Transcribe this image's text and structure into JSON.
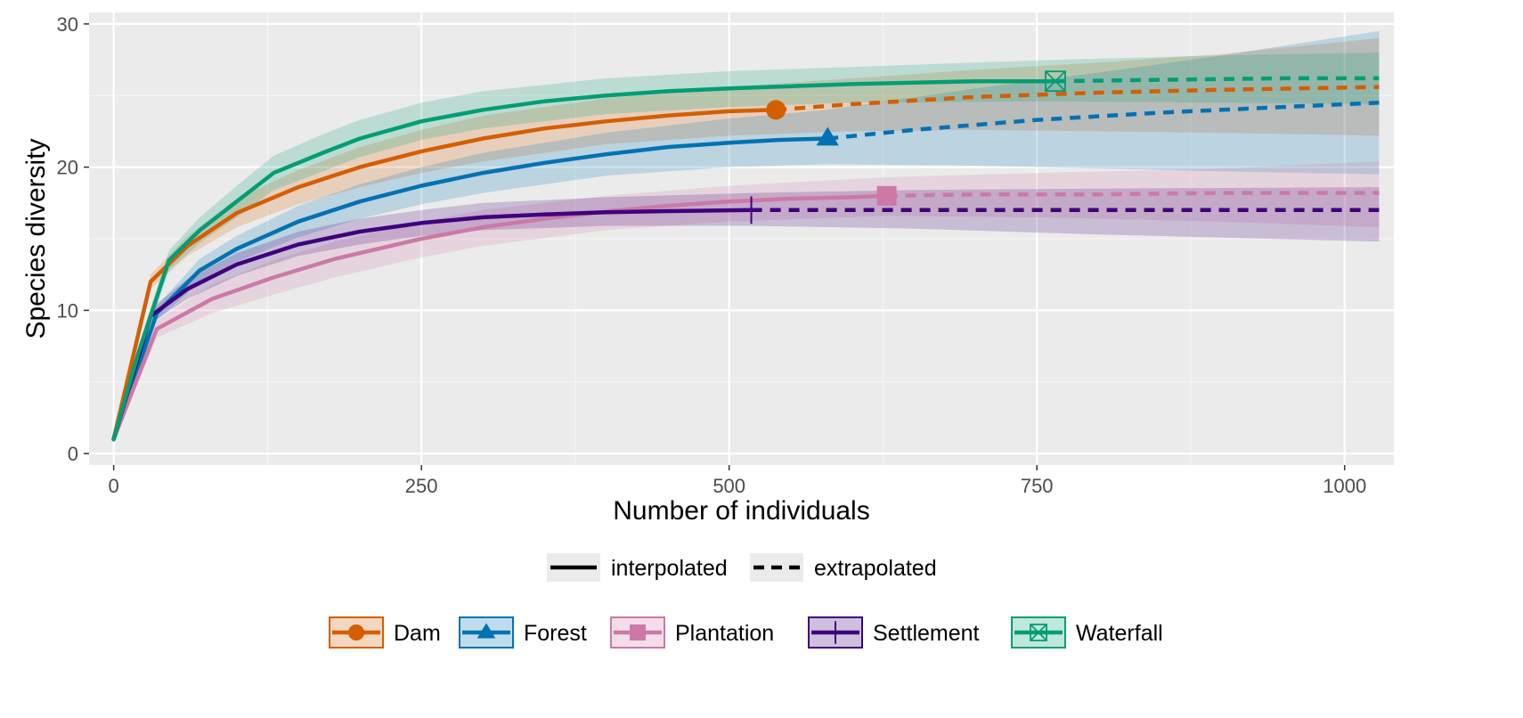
{
  "chart_data": {
    "type": "line",
    "title": "",
    "xlabel": "Number of individuals",
    "ylabel": "Species diversity",
    "xlim": [
      -20,
      1040
    ],
    "ylim": [
      -0.8,
      30.8
    ],
    "x_ticks": [
      0,
      250,
      500,
      750,
      1000
    ],
    "y_ticks": [
      0,
      10,
      20,
      30
    ],
    "grid": true,
    "legend_position": "bottom",
    "method_legend": [
      {
        "label": "interpolated",
        "style": "solid"
      },
      {
        "label": "extrapolated",
        "style": "dashed"
      }
    ],
    "series": [
      {
        "name": "Dam",
        "color": "#d55e00",
        "marker": "circle",
        "interpolated": [
          [
            0,
            1
          ],
          [
            30,
            12
          ],
          [
            60,
            14.5
          ],
          [
            100,
            16.8
          ],
          [
            150,
            18.6
          ],
          [
            200,
            20
          ],
          [
            250,
            21.1
          ],
          [
            300,
            22
          ],
          [
            350,
            22.7
          ],
          [
            400,
            23.2
          ],
          [
            450,
            23.6
          ],
          [
            500,
            23.9
          ],
          [
            538,
            24
          ]
        ],
        "observed": [
          538,
          24
        ],
        "extrapolated": [
          [
            538,
            24
          ],
          [
            600,
            24.4
          ],
          [
            700,
            24.9
          ],
          [
            800,
            25.2
          ],
          [
            900,
            25.4
          ],
          [
            1028,
            25.6
          ]
        ],
        "ci_upper": [
          [
            0,
            1
          ],
          [
            30,
            12.5
          ],
          [
            60,
            15.2
          ],
          [
            100,
            17.8
          ],
          [
            150,
            19.8
          ],
          [
            200,
            21.4
          ],
          [
            250,
            22.6
          ],
          [
            300,
            23.6
          ],
          [
            400,
            24.8
          ],
          [
            500,
            25.6
          ],
          [
            600,
            26.2
          ],
          [
            700,
            26.8
          ],
          [
            800,
            27.3
          ],
          [
            900,
            27.9
          ],
          [
            1028,
            29
          ]
        ],
        "ci_lower": [
          [
            0,
            1
          ],
          [
            30,
            11.5
          ],
          [
            60,
            13.8
          ],
          [
            100,
            15.8
          ],
          [
            150,
            17.4
          ],
          [
            200,
            18.6
          ],
          [
            250,
            19.6
          ],
          [
            300,
            20.4
          ],
          [
            400,
            21.6
          ],
          [
            500,
            22.2
          ],
          [
            600,
            22.5
          ],
          [
            700,
            22.6
          ],
          [
            800,
            22.5
          ],
          [
            900,
            22.4
          ],
          [
            1028,
            22.2
          ]
        ]
      },
      {
        "name": "Forest",
        "color": "#0072b2",
        "marker": "triangle",
        "interpolated": [
          [
            0,
            1
          ],
          [
            35,
            9.8
          ],
          [
            70,
            12.8
          ],
          [
            100,
            14.3
          ],
          [
            150,
            16.2
          ],
          [
            200,
            17.6
          ],
          [
            250,
            18.7
          ],
          [
            300,
            19.6
          ],
          [
            350,
            20.3
          ],
          [
            400,
            20.9
          ],
          [
            450,
            21.4
          ],
          [
            500,
            21.7
          ],
          [
            540,
            21.9
          ],
          [
            580,
            22
          ]
        ],
        "observed": [
          580,
          22
        ],
        "extrapolated": [
          [
            580,
            22
          ],
          [
            650,
            22.6
          ],
          [
            750,
            23.3
          ],
          [
            850,
            23.8
          ],
          [
            950,
            24.2
          ],
          [
            1028,
            24.5
          ]
        ],
        "ci_upper": [
          [
            0,
            1
          ],
          [
            35,
            10.3
          ],
          [
            70,
            13.6
          ],
          [
            100,
            15.2
          ],
          [
            150,
            17.3
          ],
          [
            200,
            18.8
          ],
          [
            250,
            20
          ],
          [
            300,
            21
          ],
          [
            400,
            22.4
          ],
          [
            500,
            23.4
          ],
          [
            580,
            24
          ],
          [
            700,
            25.5
          ],
          [
            800,
            26.6
          ],
          [
            900,
            27.8
          ],
          [
            1028,
            29.5
          ]
        ],
        "ci_lower": [
          [
            0,
            1
          ],
          [
            35,
            9.3
          ],
          [
            70,
            12
          ],
          [
            100,
            13.4
          ],
          [
            150,
            15.1
          ],
          [
            200,
            16.4
          ],
          [
            250,
            17.4
          ],
          [
            300,
            18.2
          ],
          [
            400,
            19.4
          ],
          [
            500,
            20
          ],
          [
            580,
            20.2
          ],
          [
            700,
            20.1
          ],
          [
            800,
            19.9
          ],
          [
            900,
            19.7
          ],
          [
            1028,
            19.5
          ]
        ]
      },
      {
        "name": "Plantation",
        "color": "#cc79a7",
        "marker": "square",
        "interpolated": [
          [
            0,
            1
          ],
          [
            35,
            8.7
          ],
          [
            80,
            10.8
          ],
          [
            130,
            12.3
          ],
          [
            180,
            13.6
          ],
          [
            250,
            15
          ],
          [
            300,
            15.8
          ],
          [
            350,
            16.4
          ],
          [
            400,
            16.9
          ],
          [
            450,
            17.3
          ],
          [
            500,
            17.6
          ],
          [
            550,
            17.8
          ],
          [
            600,
            17.9
          ],
          [
            628,
            18
          ]
        ],
        "observed": [
          628,
          18
        ],
        "extrapolated": [
          [
            628,
            18
          ],
          [
            700,
            18.1
          ],
          [
            800,
            18.1
          ],
          [
            900,
            18.2
          ],
          [
            1028,
            18.2
          ]
        ],
        "ci_upper": [
          [
            0,
            1
          ],
          [
            35,
            9.3
          ],
          [
            80,
            11.8
          ],
          [
            130,
            13.5
          ],
          [
            180,
            14.8
          ],
          [
            250,
            16.2
          ],
          [
            300,
            17
          ],
          [
            400,
            18
          ],
          [
            500,
            18.7
          ],
          [
            628,
            19.3
          ],
          [
            750,
            19.6
          ],
          [
            900,
            19.9
          ],
          [
            1028,
            20.4
          ]
        ],
        "ci_lower": [
          [
            0,
            1
          ],
          [
            35,
            8.1
          ],
          [
            80,
            9.8
          ],
          [
            130,
            11.1
          ],
          [
            180,
            12.3
          ],
          [
            250,
            13.7
          ],
          [
            300,
            14.5
          ],
          [
            400,
            15.6
          ],
          [
            500,
            16.2
          ],
          [
            628,
            16.6
          ],
          [
            750,
            16.5
          ],
          [
            900,
            16.2
          ],
          [
            1028,
            15.8
          ]
        ]
      },
      {
        "name": "Settlement",
        "color": "#3f007d",
        "marker": "vline",
        "interpolated": [
          [
            0,
            1
          ],
          [
            30,
            9.6
          ],
          [
            60,
            11.5
          ],
          [
            100,
            13.2
          ],
          [
            150,
            14.6
          ],
          [
            200,
            15.5
          ],
          [
            250,
            16.1
          ],
          [
            300,
            16.5
          ],
          [
            350,
            16.7
          ],
          [
            400,
            16.85
          ],
          [
            450,
            16.93
          ],
          [
            518,
            17
          ]
        ],
        "observed": [
          518,
          17
        ],
        "extrapolated": [
          [
            518,
            17
          ],
          [
            600,
            17
          ],
          [
            700,
            17
          ],
          [
            800,
            17
          ],
          [
            900,
            17
          ],
          [
            1028,
            17
          ]
        ],
        "ci_upper": [
          [
            0,
            1
          ],
          [
            30,
            10.1
          ],
          [
            60,
            12.2
          ],
          [
            100,
            14
          ],
          [
            150,
            15.5
          ],
          [
            200,
            16.4
          ],
          [
            250,
            17
          ],
          [
            300,
            17.5
          ],
          [
            400,
            17.9
          ],
          [
            518,
            18.2
          ],
          [
            650,
            18.4
          ],
          [
            800,
            18.5
          ],
          [
            1028,
            18.6
          ]
        ],
        "ci_lower": [
          [
            0,
            1
          ],
          [
            30,
            9.1
          ],
          [
            60,
            10.8
          ],
          [
            100,
            12.4
          ],
          [
            150,
            13.8
          ],
          [
            200,
            14.6
          ],
          [
            250,
            15.2
          ],
          [
            300,
            15.6
          ],
          [
            400,
            15.9
          ],
          [
            518,
            15.9
          ],
          [
            650,
            15.7
          ],
          [
            800,
            15.3
          ],
          [
            1028,
            14.8
          ]
        ]
      },
      {
        "name": "Waterfall",
        "color": "#009e73",
        "marker": "boxx",
        "interpolated": [
          [
            0,
            1
          ],
          [
            20,
            7
          ],
          [
            45,
            13.5
          ],
          [
            70,
            15.6
          ],
          [
            100,
            17.6
          ],
          [
            130,
            19.6
          ],
          [
            170,
            21
          ],
          [
            200,
            22
          ],
          [
            250,
            23.2
          ],
          [
            300,
            24
          ],
          [
            350,
            24.6
          ],
          [
            400,
            25
          ],
          [
            450,
            25.3
          ],
          [
            500,
            25.5
          ],
          [
            600,
            25.8
          ],
          [
            700,
            26
          ],
          [
            765,
            26
          ]
        ],
        "observed": [
          765,
          26
        ],
        "extrapolated": [
          [
            765,
            26
          ],
          [
            850,
            26.1
          ],
          [
            950,
            26.2
          ],
          [
            1028,
            26.2
          ]
        ],
        "ci_upper": [
          [
            0,
            1
          ],
          [
            20,
            7.5
          ],
          [
            45,
            14.2
          ],
          [
            70,
            16.5
          ],
          [
            100,
            18.7
          ],
          [
            130,
            20.8
          ],
          [
            170,
            22.3
          ],
          [
            200,
            23.3
          ],
          [
            250,
            24.5
          ],
          [
            300,
            25.3
          ],
          [
            400,
            26.2
          ],
          [
            500,
            26.7
          ],
          [
            600,
            27
          ],
          [
            765,
            27.5
          ],
          [
            900,
            27.8
          ],
          [
            1028,
            28
          ]
        ],
        "ci_lower": [
          [
            0,
            1
          ],
          [
            20,
            6.5
          ],
          [
            45,
            12.8
          ],
          [
            70,
            14.7
          ],
          [
            100,
            16.5
          ],
          [
            130,
            18.4
          ],
          [
            170,
            19.7
          ],
          [
            200,
            20.7
          ],
          [
            250,
            21.9
          ],
          [
            300,
            22.7
          ],
          [
            400,
            23.7
          ],
          [
            500,
            24.2
          ],
          [
            600,
            24.5
          ],
          [
            765,
            24.6
          ],
          [
            900,
            24.5
          ],
          [
            1028,
            24.4
          ]
        ]
      }
    ]
  }
}
